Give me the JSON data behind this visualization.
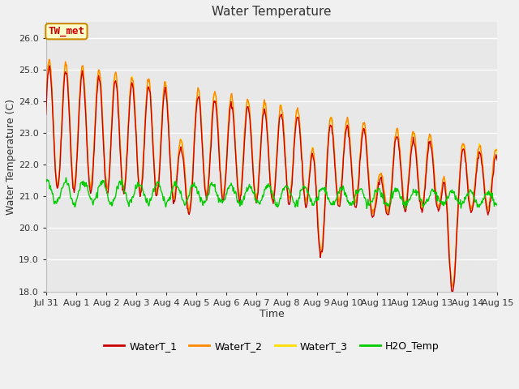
{
  "title": "Water Temperature",
  "xlabel": "Time",
  "ylabel": "Water Temperature (C)",
  "ylim": [
    18.0,
    26.5
  ],
  "yticks": [
    18.0,
    19.0,
    20.0,
    21.0,
    22.0,
    23.0,
    24.0,
    25.0,
    26.0
  ],
  "annotation_text": "TW_met",
  "annotation_bbox_facecolor": "#ffffcc",
  "annotation_bbox_edgecolor": "#cc8800",
  "annotation_text_color": "#cc0000",
  "colors": {
    "WaterT_1": "#cc0000",
    "WaterT_2": "#ff8800",
    "WaterT_3": "#ffdd00",
    "H2O_Temp": "#00cc00"
  },
  "fig_bg": "#f0f0f0",
  "plot_bg": "#e8e8e8",
  "grid_color": "#ffffff",
  "title_fontsize": 11,
  "axis_label_fontsize": 9,
  "tick_label_fontsize": 8,
  "legend_fontsize": 9,
  "xtick_labels": [
    "Jul 31",
    "Aug 1",
    "Aug 2",
    "Aug 3",
    "Aug 4",
    "Aug 5",
    "Aug 6",
    "Aug 7",
    "Aug 8",
    "Aug 9",
    "Aug 10",
    "Aug 11",
    "Aug 12",
    "Aug 13",
    "Aug 14",
    "Aug 15"
  ],
  "xtick_positions": [
    0,
    1,
    2,
    3,
    4,
    5,
    6,
    7,
    8,
    9,
    10,
    11,
    12,
    13,
    14,
    15
  ]
}
